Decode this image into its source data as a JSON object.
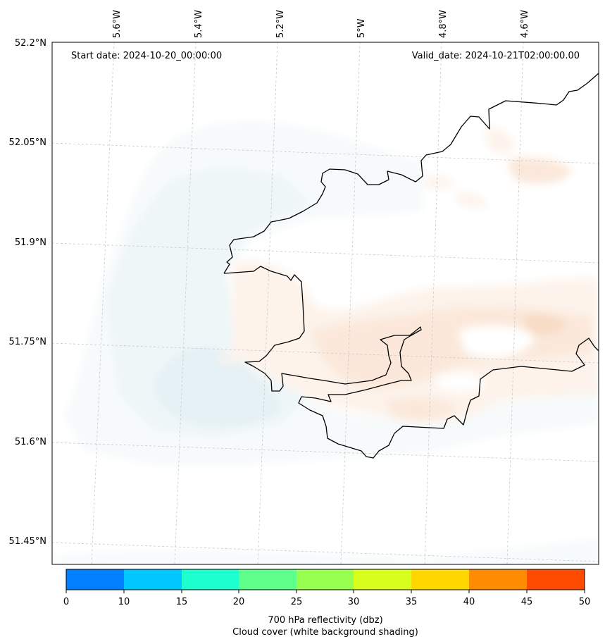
{
  "map": {
    "start_date": "Start date: 2024-10-20_00:00:00",
    "valid_date": "Valid_date: 2024-10-21T02:00:00.00",
    "lon_labels": [
      "5.6°W",
      "5.4°W",
      "5.2°W",
      "5°W",
      "4.8°W",
      "4.6°W"
    ],
    "lat_labels": [
      "52.2°N",
      "52.05°N",
      "51.9°N",
      "51.75°N",
      "51.6°N",
      "51.45°N"
    ],
    "coastline_color": "#000000",
    "gridline_color": "#c8c8c8",
    "cloud_shading_colors": [
      "#f6fafb",
      "#eef6f8",
      "#e5f1f5"
    ],
    "reflectivity_shading_colors": [
      "#fdf3eb",
      "#fbe8da",
      "#f8dcc6"
    ]
  },
  "colorbar": {
    "bounds": [
      "0",
      "10",
      "15",
      "20",
      "25",
      "30",
      "35",
      "40",
      "45",
      "50"
    ],
    "colors": [
      "#0080ff",
      "#00c8ff",
      "#1effd0",
      "#5fff8c",
      "#96ff50",
      "#d7ff1e",
      "#ffd700",
      "#ff8c00",
      "#ff4b00"
    ],
    "title_line1": "700 hPa reflectivity (dbz)",
    "title_line2": "Cloud cover (white background shading)"
  }
}
